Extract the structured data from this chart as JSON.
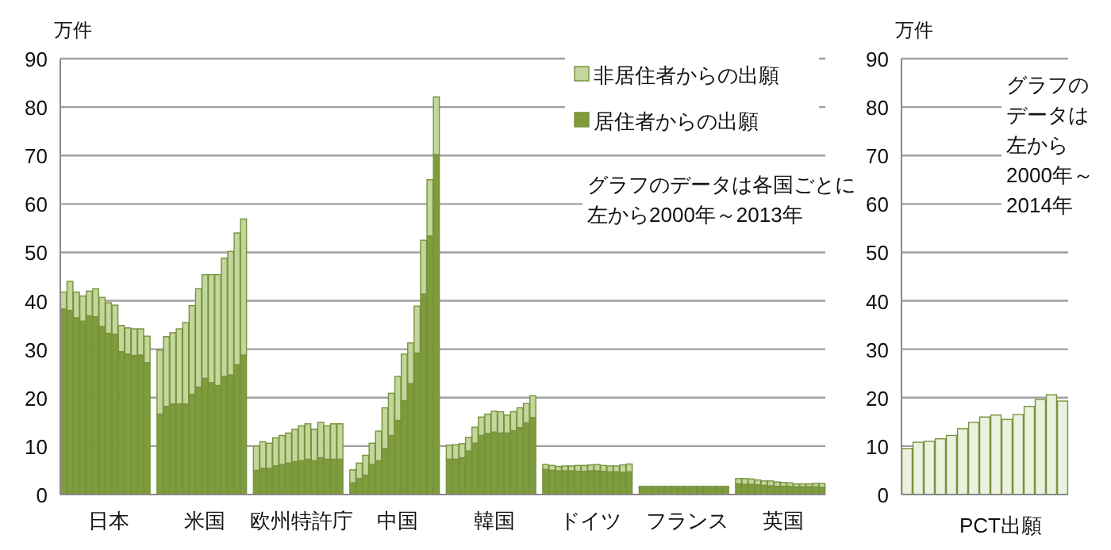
{
  "chart_data": [
    {
      "type": "bar",
      "stacked": true,
      "ylabel": "万件",
      "legend": "top right",
      "grid": "y",
      "ylim": [
        0,
        90
      ],
      "yticks": [
        0,
        10,
        20,
        30,
        40,
        50,
        60,
        70,
        80,
        90
      ],
      "annotations": [
        "グラフのデータは各国ごとに",
        "左から2000年～2013年"
      ],
      "categories": [
        null,
        null,
        null,
        null,
        null,
        null,
        null,
        "日本",
        null,
        null,
        null,
        null,
        null,
        null,
        null,
        null,
        null,
        null,
        null,
        null,
        null,
        null,
        "米国",
        null,
        null,
        null,
        null,
        null,
        null,
        null,
        null,
        null,
        null,
        null,
        null,
        null,
        null,
        "欧州特許庁",
        null,
        null,
        null,
        null,
        null,
        null,
        null,
        null,
        null,
        null,
        null,
        null,
        null,
        null,
        "中国",
        null,
        null,
        null,
        null,
        null,
        null,
        null,
        null,
        null,
        null,
        null,
        null,
        null,
        null,
        "韓国",
        null,
        null,
        null,
        null,
        null,
        null,
        null,
        null,
        null,
        null,
        null,
        null,
        null,
        null,
        "ドイツ",
        null,
        null,
        null,
        null,
        null,
        null,
        null,
        null,
        null,
        null,
        null,
        null,
        null,
        null,
        "フランス",
        null,
        null,
        null,
        null,
        null,
        null,
        null,
        null,
        null,
        null,
        null,
        null,
        null,
        null,
        "英国",
        null,
        null,
        null,
        null,
        null,
        null
      ],
      "series": [
        {
          "name": "居住者からの出願",
          "color": "#7f9c3c",
          "values": [
            38.3,
            38.0,
            36.5,
            35.8,
            36.9,
            36.7,
            34.7,
            33.3,
            33.1,
            29.5,
            29.0,
            28.7,
            28.8,
            27.2,
            null,
            16.6,
            18.2,
            18.7,
            18.7,
            18.7,
            20.7,
            22.2,
            24.0,
            23.1,
            22.5,
            24.4,
            24.7,
            26.8,
            28.8,
            null,
            5.0,
            5.4,
            5.4,
            5.9,
            6.2,
            6.5,
            6.8,
            7.0,
            7.3,
            7.0,
            7.6,
            7.3,
            7.3,
            7.3,
            null,
            2.4,
            3.3,
            4.0,
            6.2,
            7.0,
            9.5,
            12.2,
            15.3,
            19.4,
            22.9,
            29.2,
            41.4,
            53.4,
            70.2,
            null,
            7.3,
            7.3,
            7.6,
            9.0,
            10.6,
            12.2,
            12.6,
            12.9,
            12.7,
            12.7,
            13.2,
            13.8,
            14.8,
            15.9,
            null,
            5.2,
            5.0,
            4.9,
            4.9,
            4.9,
            4.8,
            4.8,
            4.9,
            4.9,
            4.8,
            4.7,
            4.7,
            4.6,
            4.7,
            null,
            1.4,
            1.4,
            1.4,
            1.4,
            1.4,
            1.4,
            1.4,
            1.4,
            1.4,
            1.4,
            1.4,
            1.4,
            1.4,
            1.4,
            null,
            2.2,
            2.1,
            2.1,
            2.0,
            1.9,
            1.8,
            1.7,
            1.7,
            1.7,
            1.6,
            1.6,
            1.6,
            1.6,
            1.5
          ]
        },
        {
          "name": "非居住者からの出願",
          "color": "#c3d69b",
          "values": [
            3.5,
            6.0,
            5.3,
            5.2,
            5.1,
            5.8,
            6.0,
            6.3,
            6.0,
            5.4,
            5.4,
            5.5,
            5.4,
            5.5,
            null,
            13.2,
            14.4,
            14.7,
            15.5,
            16.8,
            18.3,
            20.3,
            21.4,
            22.3,
            22.9,
            24.4,
            25.5,
            27.2,
            28.1,
            null,
            5.0,
            5.5,
            5.2,
            5.8,
            6.0,
            6.2,
            6.7,
            7.2,
            7.3,
            6.5,
            7.3,
            6.9,
            7.3,
            7.3,
            null,
            2.7,
            3.2,
            4.1,
            4.4,
            6.1,
            8.4,
            8.7,
            9.1,
            9.6,
            8.4,
            9.7,
            11.1,
            11.6,
            11.9,
            null,
            2.9,
            3.0,
            2.9,
            2.8,
            3.3,
            3.8,
            4.0,
            4.3,
            4.4,
            3.7,
            3.9,
            4.1,
            4.0,
            4.5,
            null,
            1.0,
            1.0,
            0.9,
            1.0,
            1.0,
            1.2,
            1.2,
            1.2,
            1.3,
            1.2,
            1.2,
            1.2,
            1.5,
            1.6,
            null,
            0.3,
            0.3,
            0.3,
            0.3,
            0.3,
            0.3,
            0.3,
            0.3,
            0.3,
            0.3,
            0.3,
            0.3,
            0.3,
            0.3,
            null,
            1.1,
            1.2,
            1.1,
            1.0,
            0.9,
            1.0,
            0.9,
            0.8,
            0.7,
            0.6,
            0.6,
            0.6,
            0.7,
            0.8
          ]
        }
      ]
    },
    {
      "type": "bar",
      "ylabel": "万件",
      "xlabel": "PCT出願",
      "grid": "y",
      "ylim": [
        0,
        90
      ],
      "yticks": [
        0,
        10,
        20,
        30,
        40,
        50,
        60,
        70,
        80,
        90
      ],
      "annotations": [
        "グラフの",
        "データは",
        "左から",
        "2000年～",
        "2014年"
      ],
      "categories": [
        null,
        null,
        null,
        null,
        null,
        null,
        null,
        null,
        null,
        null,
        null,
        null,
        null,
        null,
        null
      ],
      "series": [
        {
          "color": "#ebf1de",
          "values": [
            9.5,
            10.8,
            11.0,
            11.5,
            12.2,
            13.6,
            14.9,
            16.0,
            16.4,
            15.5,
            16.5,
            18.2,
            19.6,
            20.6,
            19.3
          ]
        }
      ]
    }
  ]
}
